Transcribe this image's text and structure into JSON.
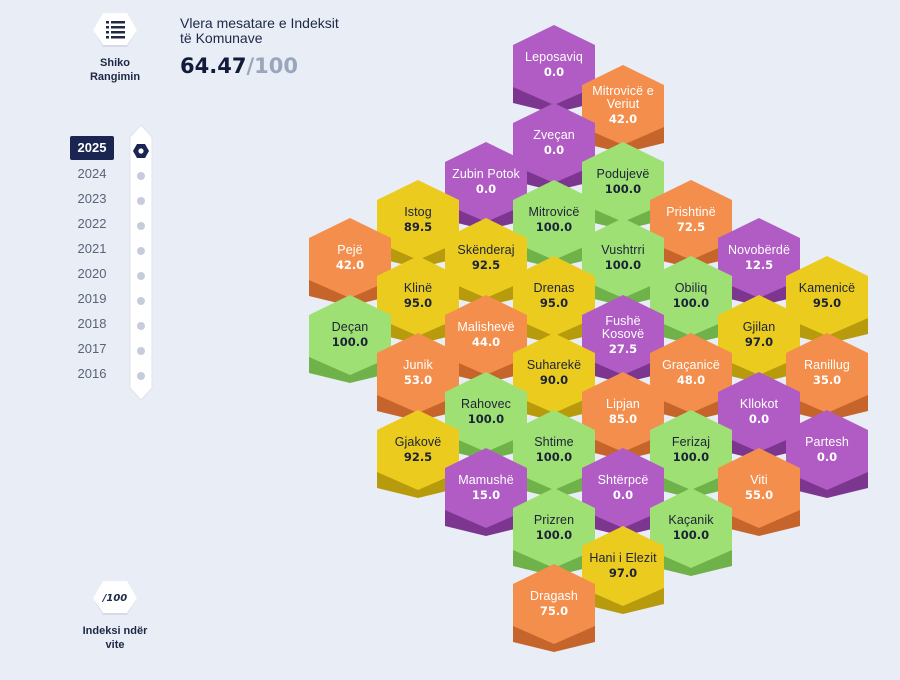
{
  "ranking_button": {
    "label": "Shiko Rangimin",
    "icon": "list-icon"
  },
  "header": {
    "title": "Vlera mesatare e Indeksit të Komunave",
    "score": "64.47",
    "separator": "/",
    "max": "100"
  },
  "years": {
    "active": "2025",
    "items": [
      "2025",
      "2024",
      "2023",
      "2022",
      "2021",
      "2020",
      "2019",
      "2018",
      "2017",
      "2016"
    ]
  },
  "index_button": {
    "icon_text": "/100",
    "label": "Indeksi ndër vite"
  },
  "colors": {
    "purple": "#b15bc4",
    "orange": "#f38e4c",
    "green": "#9fe074",
    "yellow": "#eccb1f",
    "purple_side": "#7d3690",
    "orange_side": "#c6652b",
    "green_side": "#6fb24a",
    "yellow_side": "#b89b0d"
  },
  "municipalities": [
    {
      "name": "Leposaviq",
      "value": "0.0",
      "category": "purple"
    },
    {
      "name": "Mitrovicë e Veriut",
      "value": "42.0",
      "category": "orange"
    },
    {
      "name": "Zveçan",
      "value": "0.0",
      "category": "purple"
    },
    {
      "name": "Zubin Potok",
      "value": "0.0",
      "category": "purple"
    },
    {
      "name": "Podujevë",
      "value": "100.0",
      "category": "green"
    },
    {
      "name": "Istog",
      "value": "89.5",
      "category": "yellow"
    },
    {
      "name": "Mitrovicë",
      "value": "100.0",
      "category": "green"
    },
    {
      "name": "Prishtinë",
      "value": "72.5",
      "category": "orange"
    },
    {
      "name": "Pejë",
      "value": "42.0",
      "category": "orange"
    },
    {
      "name": "Skënderaj",
      "value": "92.5",
      "category": "yellow"
    },
    {
      "name": "Vushtrri",
      "value": "100.0",
      "category": "green"
    },
    {
      "name": "Novobërdë",
      "value": "12.5",
      "category": "purple"
    },
    {
      "name": "Klinë",
      "value": "95.0",
      "category": "yellow"
    },
    {
      "name": "Drenas",
      "value": "95.0",
      "category": "yellow"
    },
    {
      "name": "Obiliq",
      "value": "100.0",
      "category": "green"
    },
    {
      "name": "Kamenicë",
      "value": "95.0",
      "category": "yellow"
    },
    {
      "name": "Deçan",
      "value": "100.0",
      "category": "green"
    },
    {
      "name": "Malishevë",
      "value": "44.0",
      "category": "orange"
    },
    {
      "name": "Fushë Kosovë",
      "value": "27.5",
      "category": "purple"
    },
    {
      "name": "Gjilan",
      "value": "97.0",
      "category": "yellow"
    },
    {
      "name": "Junik",
      "value": "53.0",
      "category": "orange"
    },
    {
      "name": "Suharekë",
      "value": "90.0",
      "category": "yellow"
    },
    {
      "name": "Graçanicë",
      "value": "48.0",
      "category": "orange"
    },
    {
      "name": "Ranillug",
      "value": "35.0",
      "category": "orange"
    },
    {
      "name": "Rahovec",
      "value": "100.0",
      "category": "green"
    },
    {
      "name": "Lipjan",
      "value": "85.0",
      "category": "orange"
    },
    {
      "name": "Kllokot",
      "value": "0.0",
      "category": "purple"
    },
    {
      "name": "Gjakovë",
      "value": "92.5",
      "category": "yellow"
    },
    {
      "name": "Shtime",
      "value": "100.0",
      "category": "green"
    },
    {
      "name": "Ferizaj",
      "value": "100.0",
      "category": "green"
    },
    {
      "name": "Partesh",
      "value": "0.0",
      "category": "purple"
    },
    {
      "name": "Mamushë",
      "value": "15.0",
      "category": "purple"
    },
    {
      "name": "Shtërpcë",
      "value": "0.0",
      "category": "purple"
    },
    {
      "name": "Viti",
      "value": "55.0",
      "category": "orange"
    },
    {
      "name": "Prizren",
      "value": "100.0",
      "category": "green"
    },
    {
      "name": "Kaçanik",
      "value": "100.0",
      "category": "green"
    },
    {
      "name": "Hani i Elezit",
      "value": "97.0",
      "category": "yellow"
    },
    {
      "name": "Dragash",
      "value": "75.0",
      "category": "orange"
    }
  ]
}
